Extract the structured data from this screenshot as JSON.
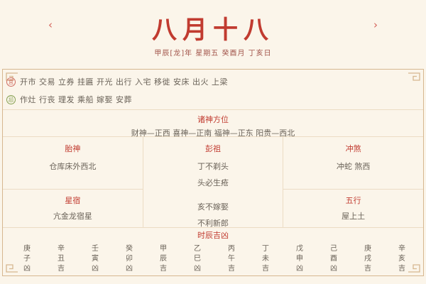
{
  "page": {
    "bg": "#fbf5ea",
    "accent_red": "#c13b30",
    "border_tan": "#d6b790",
    "grid_line": "#ecdcc4",
    "text_gray": "#6a6258"
  },
  "header": {
    "title": "八月十八",
    "subtitle": "甲辰[龙]年 星期五 癸酉月 丁亥日",
    "prev_arrow": "‹",
    "next_arrow": "›"
  },
  "suitable": {
    "icon_label": "宜",
    "items": "开市 交易 立券 挂匾 开光 出行 入宅 移徙 安床 出火 上梁"
  },
  "avoid": {
    "icon_label": "忌",
    "items": "作灶 行丧 理发 乘船 嫁娶 安葬"
  },
  "gods": {
    "header": "诸神方位",
    "content": "财神—正西 喜神—正南 福神—正东 阳贵—西北"
  },
  "grid": {
    "taishen": {
      "header": "胎神",
      "content": "仓库床外西北"
    },
    "pengzu": {
      "header": "彭祖",
      "line1": "丁不剃头",
      "line2": "头必生疮",
      "line3": "亥不嫁娶",
      "line4": "不利新郎"
    },
    "chongsha": {
      "header": "冲煞",
      "content": "冲蛇 煞西"
    },
    "xingxiu": {
      "header": "星宿",
      "content": "亢金龙宿星"
    },
    "wuxing": {
      "header": "五行",
      "content": "屋上土"
    }
  },
  "hours": {
    "header": "时辰吉凶",
    "items": [
      "庚子凶",
      "辛丑吉",
      "壬寅凶",
      "癸卯凶",
      "甲辰吉",
      "乙巳凶",
      "丙午吉",
      "丁未吉",
      "戊申凶",
      "己酉凶",
      "庚戌吉",
      "辛亥吉"
    ]
  }
}
